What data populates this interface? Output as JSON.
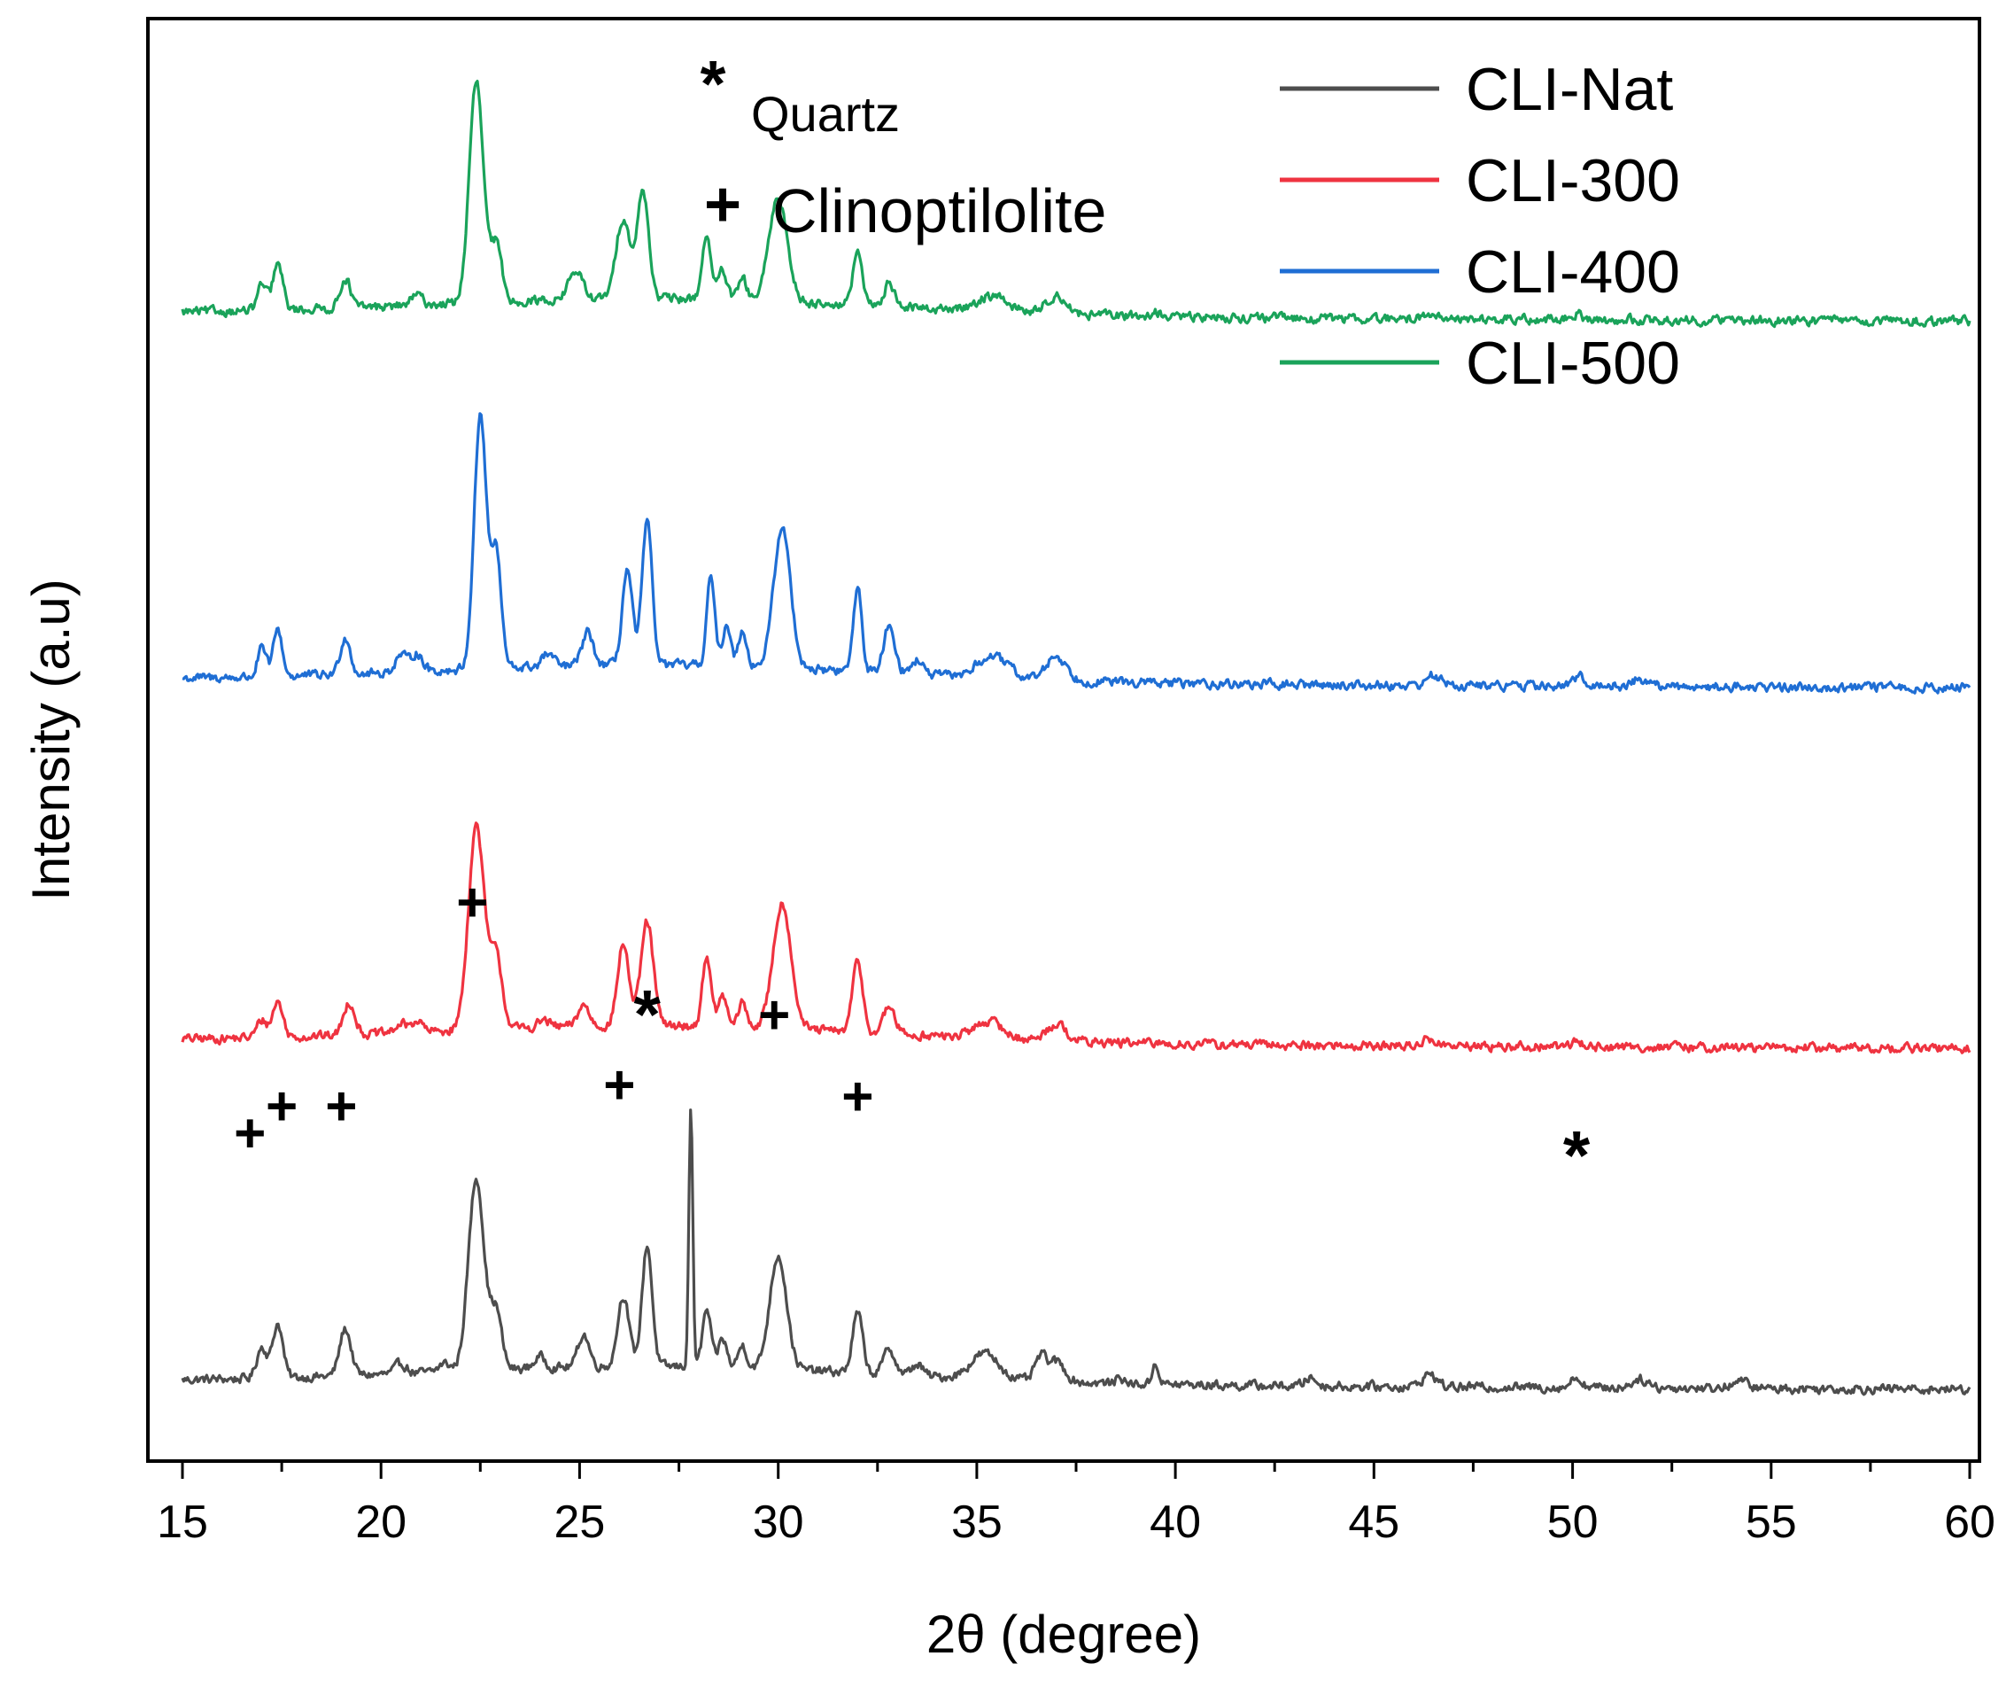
{
  "chart_data": {
    "type": "line",
    "title": "",
    "xlabel": "2θ (degree)",
    "ylabel": "Intensity (a.u)",
    "xlim": [
      15,
      60
    ],
    "x_ticks": [
      "15",
      "20",
      "25",
      "30",
      "35",
      "40",
      "45",
      "50",
      "55",
      "60"
    ],
    "y_ticks": [],
    "ylim": [
      0,
      100
    ],
    "grid": false,
    "legend": {
      "position": "top-right"
    },
    "series": [
      {
        "name": "CLI-Nat",
        "color": "#4d4d4d",
        "baseline": 4.4,
        "peaks": [
          [
            17.0,
            2.2,
            0.18
          ],
          [
            17.4,
            3.8,
            0.18
          ],
          [
            19.1,
            3.3,
            0.2
          ],
          [
            20.5,
            0.7,
            0.2
          ],
          [
            21.6,
            0.6,
            0.2
          ],
          [
            22.4,
            13.5,
            0.28
          ],
          [
            22.9,
            4.0,
            0.2
          ],
          [
            24.0,
            0.8,
            0.2
          ],
          [
            25.1,
            2.3,
            0.2
          ],
          [
            26.1,
            5.0,
            0.2
          ],
          [
            26.7,
            8.5,
            0.18
          ],
          [
            27.8,
            18.0,
            0.07
          ],
          [
            28.2,
            4.0,
            0.15
          ],
          [
            28.6,
            2.0,
            0.15
          ],
          [
            29.1,
            1.6,
            0.15
          ],
          [
            30.0,
            8.0,
            0.3
          ],
          [
            32.0,
            4.2,
            0.18
          ],
          [
            32.8,
            1.8,
            0.2
          ],
          [
            33.5,
            0.8,
            0.2
          ],
          [
            35.2,
            1.8,
            0.5
          ],
          [
            36.6,
            1.6,
            0.2
          ],
          [
            37.0,
            1.4,
            0.3
          ],
          [
            38.6,
            0.6,
            0.1
          ],
          [
            39.5,
            1.6,
            0.1
          ],
          [
            43.4,
            0.6,
            0.2
          ],
          [
            46.4,
            0.9,
            0.25
          ],
          [
            50.1,
            0.7,
            0.2
          ],
          [
            51.7,
            0.6,
            0.3
          ],
          [
            54.2,
            0.5,
            0.3
          ]
        ]
      },
      {
        "name": "CLI-300",
        "color": "#ef3340",
        "baseline": 28.3,
        "peaks": [
          [
            17.0,
            1.2,
            0.18
          ],
          [
            17.4,
            2.5,
            0.18
          ],
          [
            19.2,
            2.3,
            0.2
          ],
          [
            20.5,
            0.6,
            0.2
          ],
          [
            20.9,
            0.8,
            0.2
          ],
          [
            22.4,
            14.3,
            0.28
          ],
          [
            22.9,
            5.0,
            0.22
          ],
          [
            24.1,
            0.5,
            0.2
          ],
          [
            25.1,
            1.5,
            0.2
          ],
          [
            26.1,
            5.8,
            0.2
          ],
          [
            26.7,
            7.3,
            0.22
          ],
          [
            28.2,
            5.0,
            0.15
          ],
          [
            28.6,
            2.2,
            0.15
          ],
          [
            29.1,
            1.7,
            0.15
          ],
          [
            30.1,
            8.8,
            0.32
          ],
          [
            32.0,
            5.0,
            0.18
          ],
          [
            32.8,
            1.9,
            0.2
          ],
          [
            35.3,
            1.2,
            0.5
          ],
          [
            37.0,
            1.2,
            0.35
          ],
          [
            46.4,
            0.5,
            0.25
          ],
          [
            50.1,
            0.4,
            0.2
          ]
        ]
      },
      {
        "name": "CLI-400",
        "color": "#1f6ed4",
        "baseline": 53.6,
        "peaks": [
          [
            17.0,
            2.0,
            0.15
          ],
          [
            17.4,
            3.3,
            0.16
          ],
          [
            19.1,
            2.6,
            0.18
          ],
          [
            20.5,
            1.2,
            0.2
          ],
          [
            20.9,
            1.3,
            0.2
          ],
          [
            22.5,
            17.8,
            0.22
          ],
          [
            22.9,
            8.0,
            0.18
          ],
          [
            24.2,
            0.9,
            0.2
          ],
          [
            25.2,
            2.3,
            0.2
          ],
          [
            26.2,
            6.7,
            0.18
          ],
          [
            26.7,
            10.0,
            0.18
          ],
          [
            28.3,
            6.3,
            0.14
          ],
          [
            28.7,
            3.0,
            0.14
          ],
          [
            29.1,
            2.6,
            0.15
          ],
          [
            30.1,
            9.8,
            0.3
          ],
          [
            32.0,
            5.9,
            0.15
          ],
          [
            32.8,
            3.4,
            0.2
          ],
          [
            33.5,
            1.0,
            0.2
          ],
          [
            35.4,
            1.5,
            0.55
          ],
          [
            37.0,
            1.7,
            0.35
          ],
          [
            46.5,
            0.7,
            0.25
          ],
          [
            50.2,
            0.7,
            0.2
          ],
          [
            51.7,
            0.5,
            0.3
          ]
        ]
      },
      {
        "name": "CLI-500",
        "color": "#1aa35a",
        "baseline": 79.3,
        "peaks": [
          [
            17.0,
            1.8,
            0.16
          ],
          [
            17.4,
            3.2,
            0.18
          ],
          [
            19.1,
            2.1,
            0.18
          ],
          [
            20.9,
            0.7,
            0.2
          ],
          [
            22.4,
            15.5,
            0.25
          ],
          [
            22.9,
            4.0,
            0.2
          ],
          [
            24.9,
            2.0,
            0.25
          ],
          [
            26.1,
            5.7,
            0.25
          ],
          [
            26.6,
            7.5,
            0.2
          ],
          [
            28.2,
            4.5,
            0.16
          ],
          [
            28.6,
            2.0,
            0.15
          ],
          [
            29.1,
            1.5,
            0.15
          ],
          [
            30.0,
            7.3,
            0.32
          ],
          [
            32.0,
            3.8,
            0.16
          ],
          [
            32.8,
            1.6,
            0.2
          ],
          [
            35.4,
            1.1,
            0.55
          ],
          [
            37.0,
            1.3,
            0.35
          ],
          [
            39.5,
            0.3,
            0.15
          ],
          [
            46.4,
            0.4,
            0.25
          ],
          [
            50.1,
            0.4,
            0.2
          ]
        ]
      }
    ],
    "annotations": [
      {
        "marker": "+",
        "x": 16.7,
        "y": 20.5
      },
      {
        "marker": "+",
        "x": 17.5,
        "y": 22.4
      },
      {
        "marker": "+",
        "x": 19.0,
        "y": 22.4
      },
      {
        "marker": "+",
        "x": 22.3,
        "y": 36.7
      },
      {
        "marker": "+",
        "x": 26.0,
        "y": 23.9
      },
      {
        "marker": "*",
        "x": 26.7,
        "y": 28.5
      },
      {
        "marker": "+",
        "x": 29.9,
        "y": 28.8
      },
      {
        "marker": "+",
        "x": 32.0,
        "y": 23.1
      },
      {
        "marker": "*",
        "x": 50.1,
        "y": 18.6
      }
    ],
    "marker_key": [
      {
        "symbol": "*",
        "label": "Quartz"
      },
      {
        "symbol": "+",
        "label": "Clinoptilolite"
      }
    ]
  }
}
